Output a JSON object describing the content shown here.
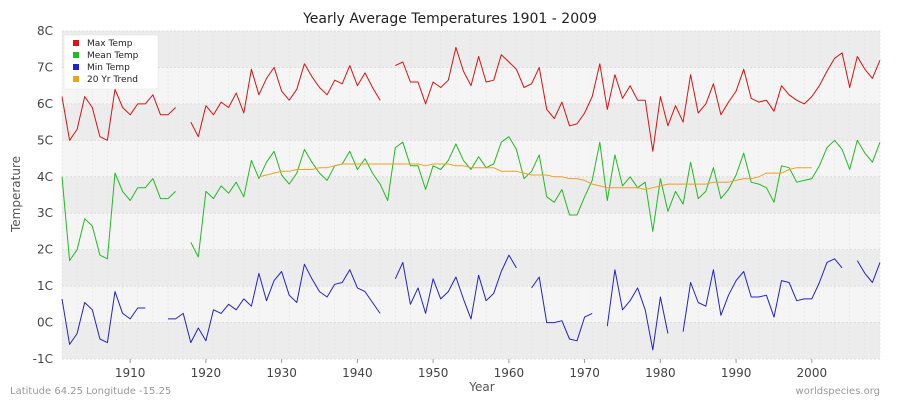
{
  "chart_data": {
    "type": "line",
    "title": "Yearly Average Temperatures 1901 - 2009",
    "xlabel": "Year",
    "ylabel": "Temperature",
    "xlim": [
      1901,
      2009
    ],
    "ylim": [
      -1,
      8
    ],
    "y_ticks": [
      {
        "value": -1,
        "label": "-1C"
      },
      {
        "value": 0,
        "label": "0C"
      },
      {
        "value": 1,
        "label": "1C"
      },
      {
        "value": 2,
        "label": "2C"
      },
      {
        "value": 3,
        "label": "3C"
      },
      {
        "value": 4,
        "label": "4C"
      },
      {
        "value": 5,
        "label": "5C"
      },
      {
        "value": 6,
        "label": "6C"
      },
      {
        "value": 7,
        "label": "7C"
      },
      {
        "value": 8,
        "label": "8C"
      }
    ],
    "x_ticks": [
      {
        "value": 1910,
        "label": "1910"
      },
      {
        "value": 1920,
        "label": "1920"
      },
      {
        "value": 1930,
        "label": "1930"
      },
      {
        "value": 1940,
        "label": "1940"
      },
      {
        "value": 1950,
        "label": "1950"
      },
      {
        "value": 1960,
        "label": "1960"
      },
      {
        "value": 1970,
        "label": "1970"
      },
      {
        "value": 1980,
        "label": "1980"
      },
      {
        "value": 1990,
        "label": "1990"
      },
      {
        "value": 2000,
        "label": "2000"
      }
    ],
    "grid": true,
    "legend_position": "top-left",
    "years_start": 1901,
    "series": [
      {
        "name": "Max Temp",
        "color": "#dd1111",
        "values": [
          6.2,
          5.0,
          5.3,
          6.2,
          5.9,
          5.1,
          5.0,
          6.4,
          5.9,
          5.7,
          6.0,
          6.0,
          6.25,
          5.7,
          5.7,
          5.9,
          null,
          5.5,
          5.1,
          5.95,
          5.7,
          6.05,
          5.9,
          6.3,
          5.75,
          6.95,
          6.25,
          6.7,
          7.0,
          6.35,
          6.1,
          6.4,
          7.1,
          6.75,
          6.45,
          6.25,
          6.65,
          6.55,
          7.05,
          6.5,
          6.85,
          6.45,
          6.1,
          null,
          7.05,
          7.15,
          6.6,
          6.6,
          6.0,
          6.6,
          6.45,
          6.65,
          7.55,
          6.9,
          6.5,
          7.3,
          6.6,
          6.65,
          7.35,
          7.15,
          6.95,
          6.45,
          6.55,
          7.0,
          5.85,
          5.6,
          6.05,
          5.4,
          5.45,
          5.75,
          6.2,
          7.1,
          5.85,
          6.8,
          6.15,
          6.5,
          6.1,
          6.1,
          4.7,
          6.2,
          5.4,
          5.95,
          5.5,
          6.8,
          5.75,
          6.0,
          6.55,
          5.7,
          6.05,
          6.35,
          6.95,
          6.15,
          6.05,
          6.1,
          5.8,
          6.5,
          6.25,
          6.1,
          6.0,
          6.2,
          6.5,
          6.9,
          7.25,
          7.4,
          6.45,
          7.3,
          6.95,
          6.7,
          7.2
        ]
      },
      {
        "name": "Mean Temp",
        "color": "#22bb22",
        "values": [
          4.0,
          1.7,
          2.0,
          2.85,
          2.65,
          1.85,
          1.75,
          4.1,
          3.6,
          3.35,
          3.7,
          3.7,
          3.95,
          3.4,
          3.4,
          3.6,
          null,
          2.2,
          1.8,
          3.6,
          3.4,
          3.75,
          3.55,
          3.85,
          3.45,
          4.45,
          3.95,
          4.4,
          4.7,
          4.05,
          3.8,
          4.1,
          4.75,
          4.4,
          4.1,
          3.9,
          4.3,
          4.35,
          4.7,
          4.2,
          4.5,
          4.1,
          3.8,
          3.35,
          4.8,
          4.95,
          4.3,
          4.3,
          3.65,
          4.3,
          4.2,
          4.45,
          4.9,
          4.45,
          4.2,
          4.55,
          4.25,
          4.35,
          4.95,
          5.1,
          4.75,
          3.95,
          4.15,
          4.6,
          3.45,
          3.3,
          3.65,
          2.95,
          2.95,
          3.45,
          3.9,
          4.95,
          3.35,
          4.6,
          3.75,
          4.0,
          3.7,
          3.85,
          2.5,
          3.95,
          3.05,
          3.6,
          3.25,
          4.4,
          3.4,
          3.6,
          4.25,
          3.4,
          3.65,
          4.05,
          4.65,
          3.85,
          3.8,
          3.7,
          3.3,
          4.3,
          4.25,
          3.85,
          3.9,
          3.95,
          4.3,
          4.8,
          5.0,
          4.75,
          4.2,
          5.0,
          4.65,
          4.4,
          4.95
        ]
      },
      {
        "name": "Min Temp",
        "color": "#2222cc",
        "values": [
          0.65,
          -0.6,
          -0.3,
          0.55,
          0.35,
          -0.45,
          -0.55,
          0.85,
          0.25,
          0.1,
          0.4,
          0.4,
          null,
          null,
          0.1,
          0.1,
          0.25,
          -0.55,
          -0.15,
          -0.5,
          0.35,
          0.25,
          0.5,
          0.35,
          0.65,
          0.45,
          1.35,
          0.6,
          1.15,
          1.4,
          0.75,
          0.55,
          1.6,
          1.2,
          0.85,
          0.7,
          1.05,
          1.1,
          1.45,
          0.95,
          0.85,
          0.55,
          0.25,
          null,
          1.2,
          1.65,
          0.5,
          0.95,
          0.25,
          1.2,
          0.65,
          0.85,
          1.25,
          0.65,
          0.1,
          1.3,
          0.6,
          0.8,
          1.4,
          1.85,
          1.5,
          null,
          0.95,
          1.25,
          0.0,
          0.0,
          0.05,
          -0.45,
          -0.5,
          0.15,
          0.25,
          null,
          -0.1,
          1.45,
          0.35,
          0.6,
          0.95,
          0.35,
          -0.75,
          0.7,
          -0.3,
          null,
          -0.25,
          1.1,
          0.55,
          0.45,
          1.45,
          0.2,
          0.75,
          1.15,
          1.4,
          0.7,
          0.7,
          0.75,
          0.15,
          1.15,
          1.1,
          0.6,
          0.65,
          0.65,
          1.1,
          1.65,
          1.75,
          1.5,
          null,
          1.7,
          1.35,
          1.1,
          1.65
        ]
      },
      {
        "name": "20 Yr Trend",
        "color": "#f0a020",
        "values": [
          null,
          null,
          null,
          null,
          null,
          null,
          null,
          null,
          null,
          null,
          null,
          null,
          null,
          null,
          null,
          null,
          null,
          null,
          null,
          null,
          null,
          null,
          null,
          null,
          null,
          null,
          4.0,
          4.05,
          4.1,
          4.15,
          4.15,
          4.2,
          4.2,
          4.2,
          4.25,
          4.25,
          4.3,
          4.35,
          4.35,
          4.35,
          4.35,
          4.35,
          4.35,
          4.35,
          4.35,
          4.35,
          4.35,
          4.35,
          4.3,
          4.35,
          4.35,
          4.35,
          4.3,
          4.3,
          4.25,
          4.25,
          4.25,
          4.25,
          4.15,
          4.15,
          4.15,
          4.1,
          4.05,
          4.05,
          4.05,
          4.0,
          4.0,
          3.95,
          3.95,
          3.9,
          3.8,
          3.75,
          3.7,
          3.7,
          3.7,
          3.7,
          3.7,
          3.65,
          3.7,
          3.75,
          3.8,
          3.8,
          3.8,
          3.8,
          3.8,
          3.8,
          3.85,
          3.85,
          3.85,
          3.9,
          3.95,
          3.95,
          4.0,
          4.1,
          4.1,
          4.1,
          4.2,
          4.25,
          4.25,
          4.25,
          null,
          null,
          null,
          null,
          null,
          null,
          null,
          null,
          null
        ]
      }
    ]
  },
  "footer": {
    "left": "Latitude 64.25 Longitude -15.25",
    "right": "worldspecies.org"
  },
  "colors": {
    "background": "#ffffff",
    "plot_background": "#f5f5f5",
    "band": "#ececec",
    "grid": "#dddddd"
  }
}
